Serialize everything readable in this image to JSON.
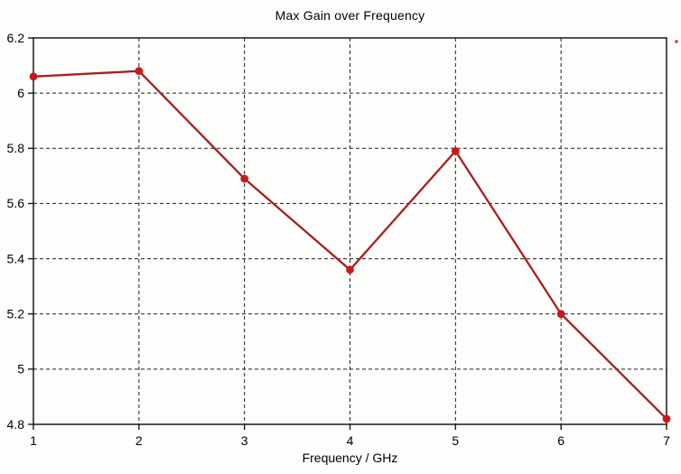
{
  "chart_data": {
    "type": "line",
    "title": "Max Gain over Frequency",
    "xlabel": "Frequency / GHz",
    "ylabel": "",
    "x": [
      1,
      2,
      3,
      4,
      5,
      6,
      7
    ],
    "series": [
      {
        "name": "Max Gain",
        "values": [
          6.06,
          6.08,
          5.69,
          5.36,
          5.79,
          5.2,
          4.82
        ]
      }
    ],
    "xlim": [
      1,
      7
    ],
    "ylim": [
      4.8,
      6.2
    ],
    "x_ticks": [
      1,
      2,
      3,
      4,
      5,
      6,
      7
    ],
    "x_tick_labels": [
      "1",
      "2",
      "3",
      "4",
      "5",
      "6",
      "7"
    ],
    "y_ticks": [
      4.8,
      5.0,
      5.2,
      5.4,
      5.6,
      5.8,
      6.0,
      6.2
    ],
    "y_tick_labels": [
      "4.8",
      "5",
      "5.2",
      "5.4",
      "5.6",
      "5.8",
      "6",
      "6.2"
    ],
    "grid": true,
    "grid_style": "dashed",
    "legend_position": "none",
    "marker": "circle",
    "colors": {
      "line": "#a52020",
      "marker": "#c81919",
      "frame": "#1a1a1a",
      "grid": "#1f1f1f",
      "background": "#fdfdfc",
      "text": "#000000"
    }
  }
}
